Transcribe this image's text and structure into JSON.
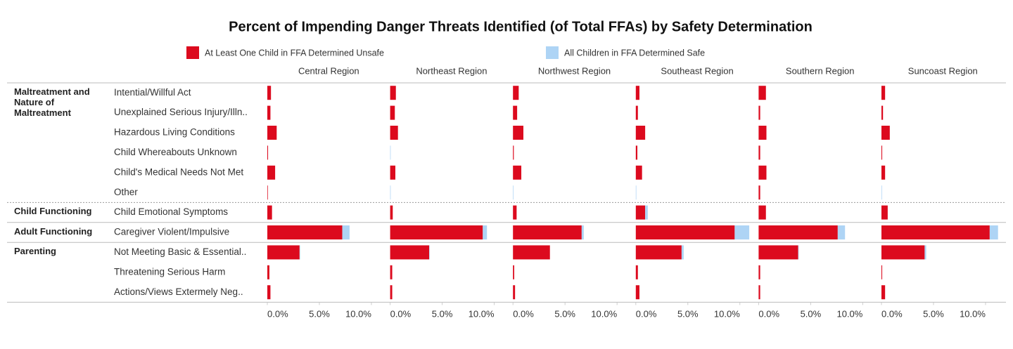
{
  "chart_data": {
    "type": "bar",
    "orientation": "horizontal",
    "stacked": true,
    "title": "Percent of Impending Danger Threats Identified (of Total FFAs) by Safety Determination",
    "series": [
      {
        "name": "At Least One Child in FFA Determined Unsafe",
        "color": "#dc0a1e"
      },
      {
        "name": "All Children in FFA Determined Safe",
        "color": "#aed4f5"
      }
    ],
    "groups": [
      {
        "name": "Maltreatment and Nature of Maltreatment",
        "categories": [
          "Intential/Willful Act",
          "Unexplained Serious Injury/Illn..",
          "Hazardous Living Conditions",
          "Child Whereabouts Unknown",
          "Child's Medical Needs Not Met",
          "Other"
        ]
      },
      {
        "name": "Child Functioning",
        "categories": [
          "Child Emotional Symptoms"
        ]
      },
      {
        "name": "Adult Functioning",
        "categories": [
          "Caregiver Violent/Impulsive"
        ]
      },
      {
        "name": "Parenting",
        "categories": [
          "Not Meeting Basic & Essential..",
          "Threatening Serious Harm",
          "Actions/Views Extermely Neg.."
        ]
      }
    ],
    "xlim": [
      0,
      11.8
    ],
    "xticks": [
      {
        "value": 0,
        "label": "0.0%"
      },
      {
        "value": 5,
        "label": "5.0%"
      },
      {
        "value": 10,
        "label": "10.0%"
      }
    ],
    "panels": [
      {
        "title": "Central Region",
        "series": [
          {
            "values": [
              0.35,
              0.3,
              0.9,
              0.07,
              0.75,
              0.05,
              0.45,
              7.2,
              3.1,
              0.2,
              0.3
            ]
          },
          {
            "values": [
              0,
              0,
              0,
              0,
              0,
              0,
              0,
              0.7,
              0.05,
              0,
              0
            ]
          }
        ]
      },
      {
        "title": "Northeast Region",
        "series": [
          {
            "values": [
              0.55,
              0.45,
              0.75,
              0,
              0.5,
              0,
              0.25,
              8.9,
              3.75,
              0.2,
              0.2
            ]
          },
          {
            "values": [
              0,
              0,
              0,
              0.05,
              0,
              0.05,
              0,
              0.4,
              0.05,
              0,
              0
            ]
          }
        ]
      },
      {
        "title": "Northwest Region",
        "series": [
          {
            "values": [
              0.55,
              0.4,
              1.0,
              0.08,
              0.8,
              0,
              0.35,
              6.6,
              3.55,
              0.12,
              0.2
            ]
          },
          {
            "values": [
              0,
              0,
              0,
              0,
              0,
              0.05,
              0,
              0.2,
              0,
              0,
              0
            ]
          }
        ]
      },
      {
        "title": "Southeast Region",
        "series": [
          {
            "values": [
              0.35,
              0.2,
              0.9,
              0.15,
              0.6,
              0,
              0.9,
              9.5,
              4.4,
              0.2,
              0.35
            ]
          },
          {
            "values": [
              0,
              0,
              0,
              0,
              0,
              0.05,
              0.25,
              1.4,
              0.2,
              0,
              0
            ]
          }
        ]
      },
      {
        "title": "Southern Region",
        "series": [
          {
            "values": [
              0.7,
              0.15,
              0.75,
              0.15,
              0.75,
              0.15,
              0.7,
              7.6,
              3.8,
              0.15,
              0.15
            ]
          },
          {
            "values": [
              0,
              0,
              0,
              0,
              0,
              0,
              0,
              0.7,
              0.05,
              0,
              0
            ]
          }
        ]
      },
      {
        "title": "Suncoast Region",
        "series": [
          {
            "values": [
              0.35,
              0.15,
              0.8,
              0.07,
              0.35,
              0,
              0.6,
              10.4,
              4.15,
              0.07,
              0.35
            ]
          },
          {
            "values": [
              0,
              0,
              0,
              0,
              0,
              0.05,
              0,
              0.8,
              0.15,
              0,
              0
            ]
          }
        ]
      }
    ]
  }
}
